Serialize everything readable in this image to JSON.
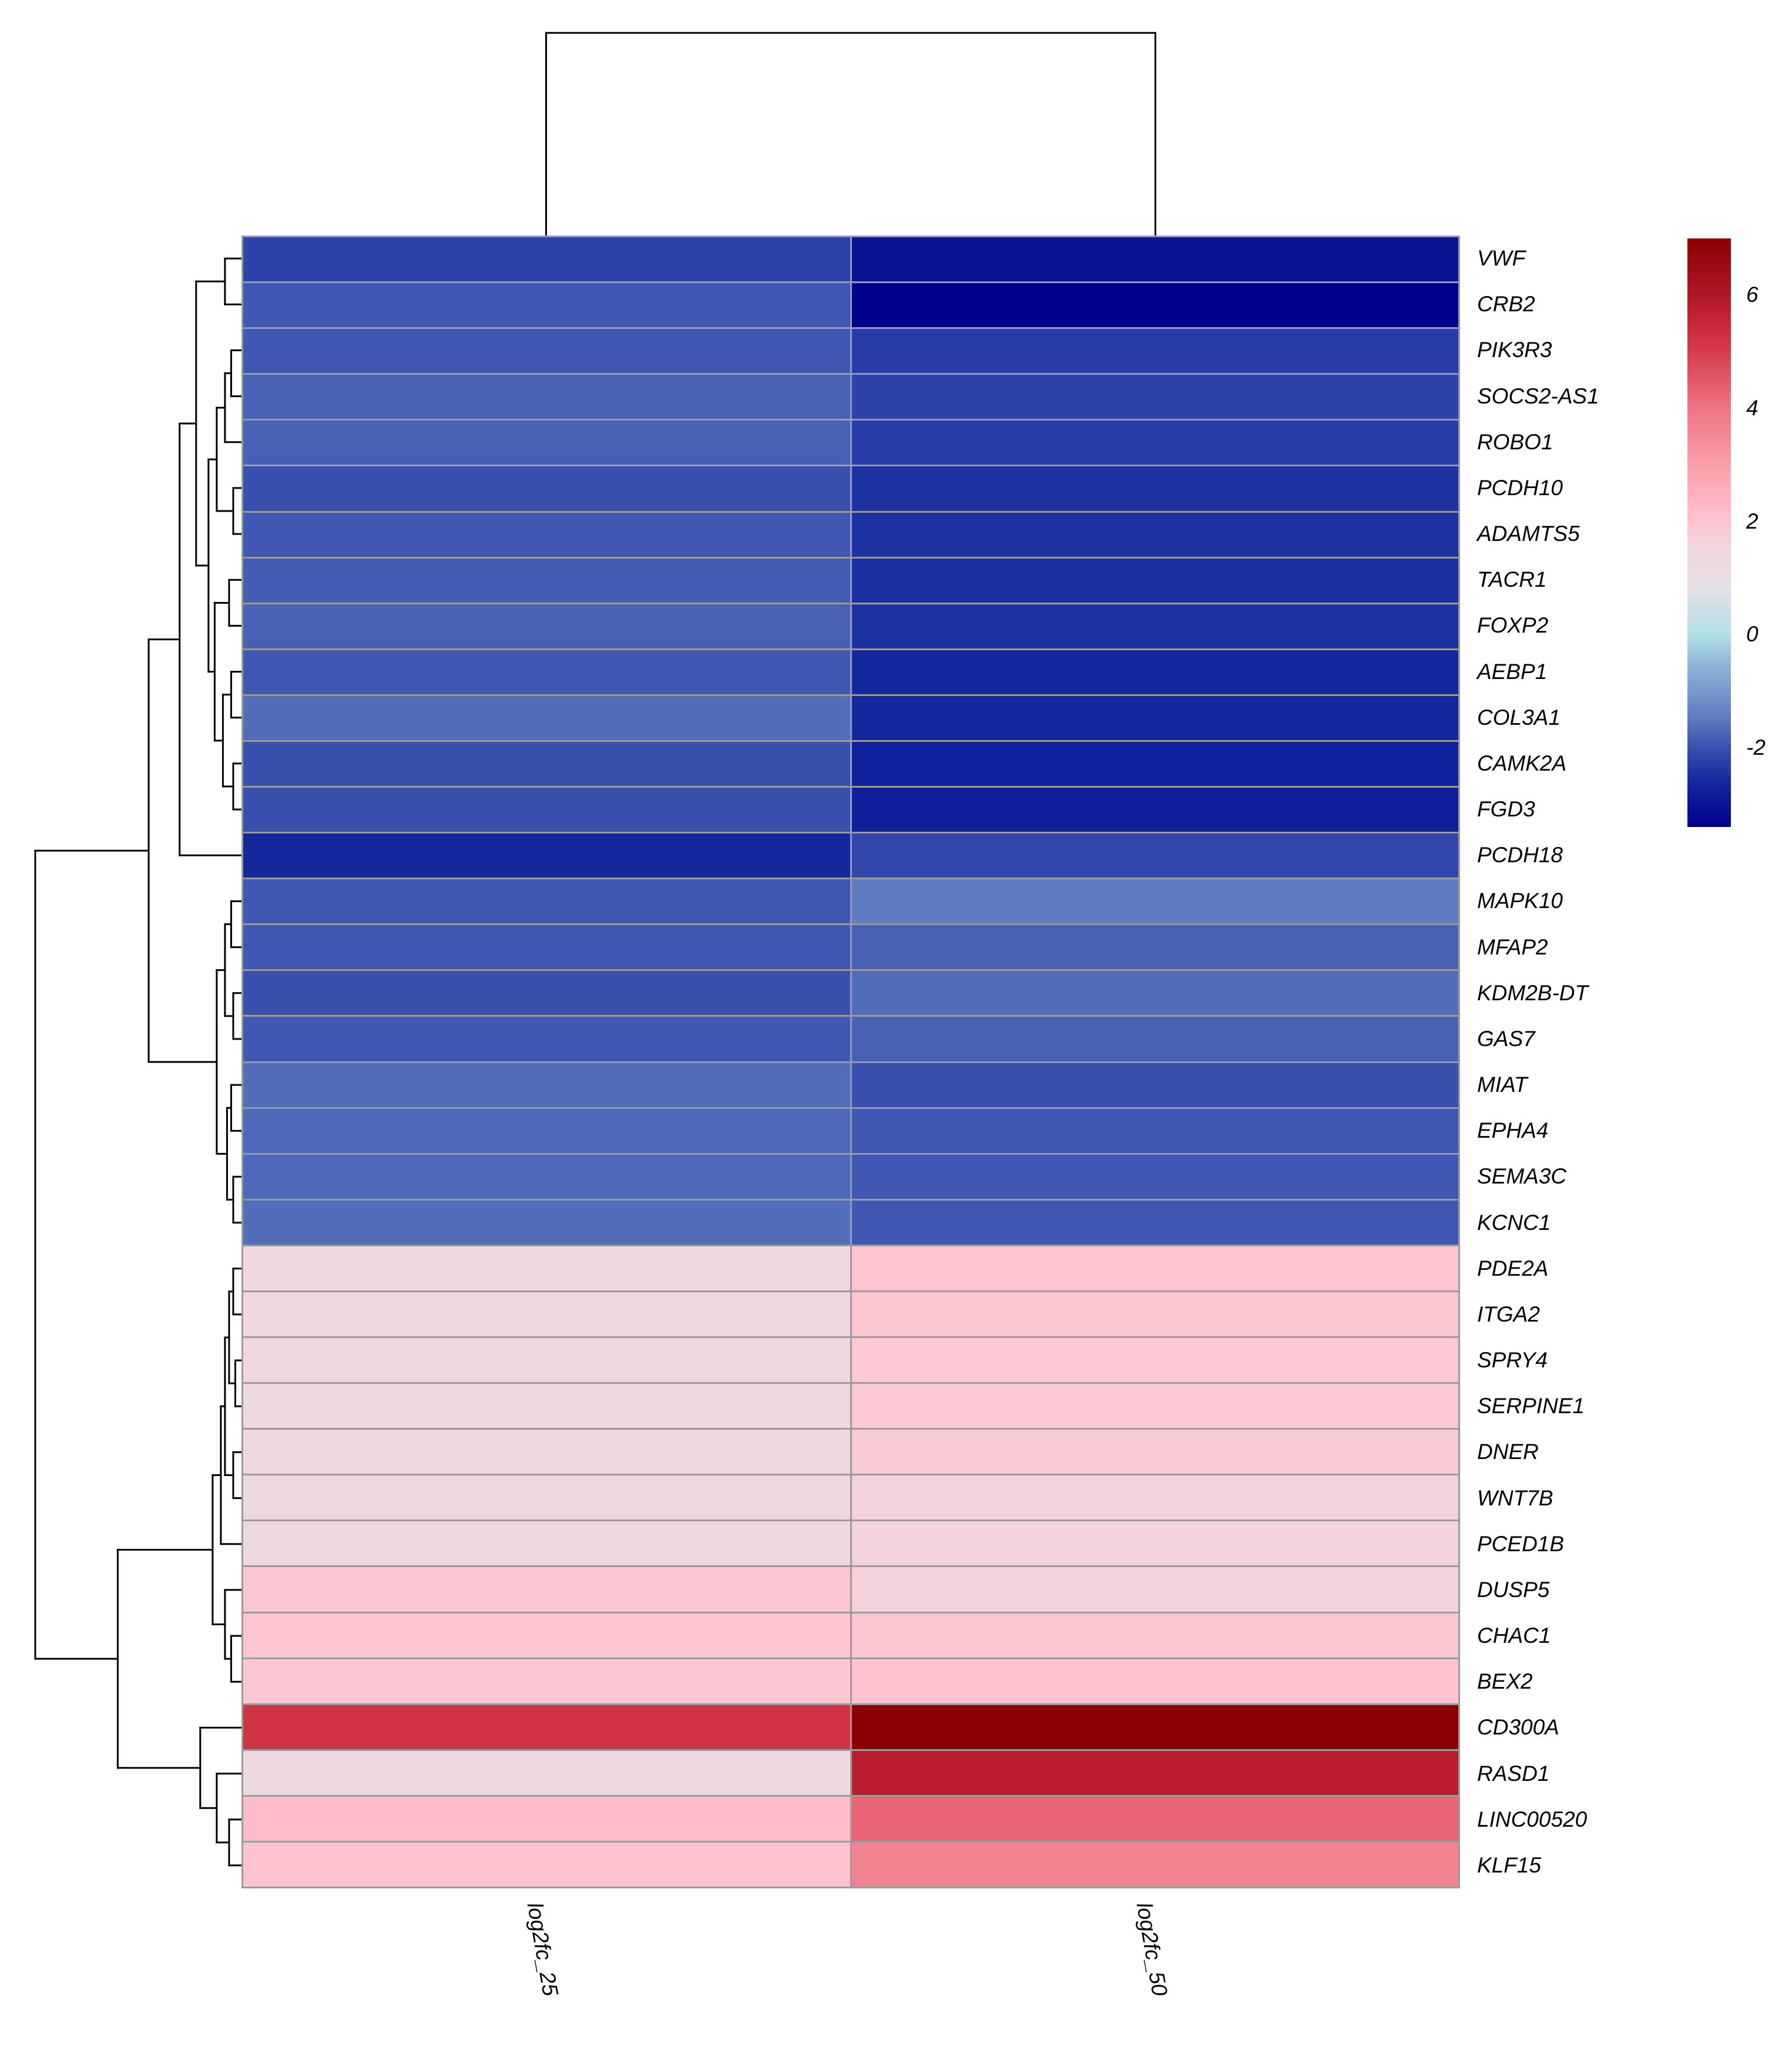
{
  "figure": {
    "background": "#ffffff",
    "grid_border_color": "#9b9b9b",
    "dendrogram_line_color": "#000000",
    "text_color": "#000000"
  },
  "chart_data": {
    "type": "heatmap",
    "title": "",
    "legend_position": "right",
    "columns": [
      "log2fc_25",
      "log2fc_50"
    ],
    "genes": [
      "VWF",
      "CRB2",
      "PIK3R3",
      "SOCS2-AS1",
      "ROBO1",
      "PCDH10",
      "ADAMTS5",
      "TACR1",
      "FOXP2",
      "AEBP1",
      "COL3A1",
      "CAMK2A",
      "FGD3",
      "PCDH18",
      "MAPK10",
      "MFAP2",
      "KDM2B-DT",
      "GAS7",
      "MIAT",
      "EPHA4",
      "SEMA3C",
      "KCNC1",
      "PDE2A",
      "ITGA2",
      "SPRY4",
      "SERPINE1",
      "DNER",
      "WNT7B",
      "PCED1B",
      "DUSP5",
      "CHAC1",
      "BEX2",
      "CD300A",
      "RASD1",
      "LINC00520",
      "KLF15"
    ],
    "values": [
      [
        -2.2,
        -3.0
      ],
      [
        -1.9,
        -3.35
      ],
      [
        -1.9,
        -2.3
      ],
      [
        -1.8,
        -2.2
      ],
      [
        -1.8,
        -2.3
      ],
      [
        -2.0,
        -2.45
      ],
      [
        -1.9,
        -2.45
      ],
      [
        -1.85,
        -2.5
      ],
      [
        -1.8,
        -2.45
      ],
      [
        -1.9,
        -2.6
      ],
      [
        -1.65,
        -2.6
      ],
      [
        -2.0,
        -2.7
      ],
      [
        -2.0,
        -2.8
      ],
      [
        -2.6,
        -2.15
      ],
      [
        -1.9,
        -1.45
      ],
      [
        -1.9,
        -1.8
      ],
      [
        -2.0,
        -1.65
      ],
      [
        -1.9,
        -1.8
      ],
      [
        -1.65,
        -2.0
      ],
      [
        -1.7,
        -1.9
      ],
      [
        -1.7,
        -1.9
      ],
      [
        -1.65,
        -1.9
      ],
      [
        1.4,
        2.0
      ],
      [
        1.4,
        1.95
      ],
      [
        1.4,
        1.85
      ],
      [
        1.35,
        1.85
      ],
      [
        1.35,
        1.8
      ],
      [
        1.3,
        1.6
      ],
      [
        1.3,
        1.6
      ],
      [
        1.9,
        1.6
      ],
      [
        2.0,
        1.95
      ],
      [
        1.9,
        2.05
      ],
      [
        5.2,
        7.0
      ],
      [
        1.35,
        5.8
      ],
      [
        2.2,
        4.3
      ],
      [
        2.05,
        3.7
      ]
    ],
    "vmin": -3.4,
    "vmax": 7.0,
    "legend_ticks": [
      "6",
      "4",
      "2",
      "0",
      "-2"
    ],
    "legend_tick_values": [
      6,
      4,
      2,
      0,
      -2
    ],
    "color_stops": [
      [
        -3.4,
        "#00008B"
      ],
      [
        -2.6,
        "#14289E"
      ],
      [
        -2.0,
        "#3A50AF"
      ],
      [
        -1.5,
        "#5C7ABF"
      ],
      [
        -0.5,
        "#91B9DA"
      ],
      [
        0.0,
        "#B2E1E7"
      ],
      [
        0.8,
        "#E4DEE6"
      ],
      [
        1.5,
        "#F0D6DE"
      ],
      [
        2.05,
        "#FFC2CE"
      ],
      [
        3.0,
        "#FA9EAA"
      ],
      [
        4.0,
        "#EE7685"
      ],
      [
        5.0,
        "#D63C4C"
      ],
      [
        6.0,
        "#B01626"
      ],
      [
        7.0,
        "#8B0000"
      ]
    ],
    "col_tree": {
      "h": 1.0,
      "c": [
        0,
        1
      ]
    },
    "row_tree": {
      "h": 1.0,
      "c": [
        {
          "h": 0.45,
          "c": [
            {
              "h": 0.3,
              "c": [
                {
                  "h": 0.22,
                  "c": [
                    {
                      "h": 0.08,
                      "c": [
                        0,
                        1
                      ]
                    },
                    {
                      "h": 0.16,
                      "c": [
                        {
                          "h": 0.12,
                          "c": [
                            {
                              "h": 0.08,
                              "c": [
                                {
                                  "h": 0.05,
                                  "c": [
                                    2,
                                    3
                                  ]
                                },
                                4
                              ]
                            },
                            {
                              "h": 0.04,
                              "c": [
                                5,
                                6
                              ]
                            }
                          ]
                        },
                        {
                          "h": 0.13,
                          "c": [
                            {
                              "h": 0.06,
                              "c": [
                                7,
                                8
                              ]
                            },
                            {
                              "h": 0.09,
                              "c": [
                                {
                                  "h": 0.05,
                                  "c": [
                                    9,
                                    10
                                  ]
                                },
                                {
                                  "h": 0.04,
                                  "c": [
                                    11,
                                    12
                                  ]
                                }
                              ]
                            }
                          ]
                        }
                      ]
                    }
                  ]
                },
                13
              ]
            },
            {
              "h": 0.12,
              "c": [
                {
                  "h": 0.08,
                  "c": [
                    {
                      "h": 0.05,
                      "c": [
                        14,
                        15
                      ]
                    },
                    {
                      "h": 0.04,
                      "c": [
                        16,
                        17
                      ]
                    }
                  ]
                },
                {
                  "h": 0.07,
                  "c": [
                    {
                      "h": 0.05,
                      "c": [
                        18,
                        19
                      ]
                    },
                    {
                      "h": 0.04,
                      "c": [
                        20,
                        21
                      ]
                    }
                  ]
                }
              ]
            }
          ]
        },
        {
          "h": 0.6,
          "c": [
            {
              "h": 0.14,
              "c": [
                {
                  "h": 0.1,
                  "c": [
                    {
                      "h": 0.08,
                      "c": [
                        {
                          "h": 0.06,
                          "c": [
                            {
                              "h": 0.04,
                              "c": [
                                22,
                                23
                              ]
                            },
                            {
                              "h": 0.03,
                              "c": [
                                24,
                                25
                              ]
                            }
                          ]
                        },
                        {
                          "h": 0.04,
                          "c": [
                            26,
                            27
                          ]
                        }
                      ]
                    },
                    28
                  ]
                },
                {
                  "h": 0.08,
                  "c": [
                    29,
                    {
                      "h": 0.05,
                      "c": [
                        30,
                        31
                      ]
                    }
                  ]
                }
              ]
            },
            {
              "h": 0.2,
              "c": [
                32,
                {
                  "h": 0.12,
                  "c": [
                    33,
                    {
                      "h": 0.06,
                      "c": [
                        34,
                        35
                      ]
                    }
                  ]
                }
              ]
            }
          ]
        }
      ]
    }
  }
}
